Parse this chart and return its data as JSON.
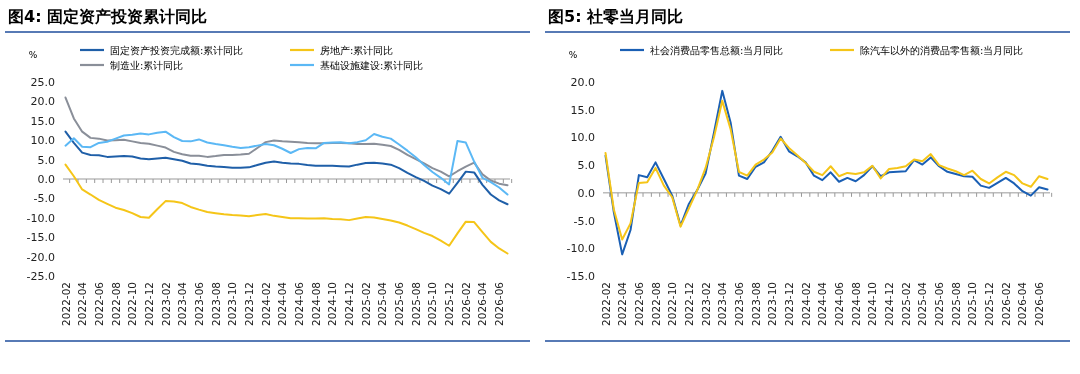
{
  "chart_data": [
    {
      "type": "line",
      "title": "图4: 固定资产投资累计同比",
      "ylabel": "%",
      "legend": "top",
      "categories": [
        "2022-02",
        null,
        "2022-04",
        null,
        "2022-06",
        null,
        "2022-08",
        null,
        "2022-10",
        null,
        "2022-12",
        null,
        "2023-02",
        null,
        "2023-04",
        null,
        "2023-06",
        null,
        "2023-08",
        null,
        "2023-10",
        null,
        "2023-12",
        null,
        "2024-02",
        null,
        "2024-04",
        null,
        "2024-06",
        null,
        "2024-08",
        null,
        "2024-10",
        null,
        "2024-12",
        null,
        "2025-02",
        null,
        "2025-04",
        null,
        "2025-06",
        null,
        "2025-08",
        null,
        "2025-10",
        null,
        "2025-12",
        null,
        "2026-02",
        null,
        "2026-04",
        null,
        "2026-06",
        null
      ],
      "ylim": [
        -25,
        25
      ],
      "yticks": [
        {
          "value": 25,
          "label": "25.0"
        },
        {
          "value": 20,
          "label": "20.0"
        },
        {
          "value": 15,
          "label": "15.0"
        },
        {
          "value": 10,
          "label": "10.0"
        },
        {
          "value": 5,
          "label": "5.0"
        },
        {
          "value": 0,
          "label": "0.0"
        },
        {
          "value": -5,
          "label": "-5.0"
        },
        {
          "value": -10,
          "label": "-10.0"
        },
        {
          "value": -15,
          "label": "-15.0"
        },
        {
          "value": -20,
          "label": "-20.0"
        },
        {
          "value": -25,
          "label": "-25.0"
        }
      ],
      "series": [
        {
          "name": "固定资产投资完成额:累计同比",
          "color": "#1f5fa8",
          "values": [
            12.2,
            9.3,
            6.8,
            6.2,
            6.1,
            5.7,
            5.8,
            5.9,
            5.8,
            5.3,
            5.1,
            5.3,
            5.5,
            5.1,
            4.7,
            4.0,
            3.8,
            3.4,
            3.2,
            3.1,
            2.9,
            2.9,
            3.0,
            3.6,
            4.2,
            4.5,
            4.2,
            4.0,
            3.9,
            3.6,
            3.4,
            3.4,
            3.4,
            3.3,
            3.2,
            3.7,
            4.1,
            4.2,
            4.0,
            3.7,
            2.8,
            1.6,
            0.5,
            -0.5,
            -1.7,
            -2.6,
            -3.8,
            -1.0,
            1.9,
            1.7,
            -1.5,
            -4.0,
            -5.5,
            -6.5
          ]
        },
        {
          "name": "房地产:累计同比",
          "color": "#f5c518",
          "values": [
            3.7,
            0.7,
            -2.7,
            -4.0,
            -5.4,
            -6.4,
            -7.4,
            -8.0,
            -8.8,
            -9.8,
            -10.0,
            -7.8,
            -5.7,
            -5.8,
            -6.2,
            -7.2,
            -7.9,
            -8.5,
            -8.8,
            -9.1,
            -9.3,
            -9.4,
            -9.6,
            -9.3,
            -9.0,
            -9.5,
            -9.8,
            -10.1,
            -10.1,
            -10.2,
            -10.2,
            -10.1,
            -10.3,
            -10.4,
            -10.6,
            -10.2,
            -9.8,
            -9.9,
            -10.3,
            -10.7,
            -11.2,
            -12.0,
            -12.9,
            -13.9,
            -14.7,
            -15.9,
            -17.2,
            -14.0,
            -11.0,
            -11.1,
            -13.7,
            -16.2,
            -17.9,
            -19.2
          ]
        },
        {
          "name": "制造业:累计同比",
          "color": "#8a8f99",
          "values": [
            21.0,
            15.6,
            12.2,
            10.6,
            10.4,
            9.9,
            10.0,
            10.1,
            9.7,
            9.3,
            9.1,
            8.6,
            8.1,
            7.0,
            6.4,
            6.0,
            6.0,
            5.7,
            5.9,
            6.2,
            6.2,
            6.3,
            6.5,
            8.0,
            9.5,
            9.9,
            9.7,
            9.6,
            9.5,
            9.3,
            9.2,
            9.2,
            9.3,
            9.3,
            9.2,
            9.0,
            9.0,
            9.1,
            8.8,
            8.5,
            7.5,
            6.2,
            5.1,
            4.0,
            2.8,
            1.9,
            0.7,
            2.0,
            3.2,
            4.2,
            1.2,
            -0.4,
            -1.2,
            -1.6
          ]
        },
        {
          "name": "基础设施建设:累计同比",
          "color": "#5bb8f5",
          "values": [
            8.6,
            10.5,
            8.3,
            8.2,
            9.3,
            9.6,
            10.4,
            11.2,
            11.4,
            11.7,
            11.5,
            11.9,
            12.2,
            10.8,
            9.8,
            9.7,
            10.2,
            9.4,
            9.0,
            8.7,
            8.3,
            8.0,
            8.2,
            8.6,
            9.0,
            8.7,
            7.8,
            6.7,
            7.7,
            8.0,
            7.9,
            9.3,
            9.4,
            9.5,
            9.2,
            9.5,
            10.0,
            11.6,
            10.9,
            10.4,
            8.9,
            7.3,
            5.6,
            3.6,
            1.8,
            0.3,
            -1.4,
            9.8,
            9.4,
            4.5,
            0.3,
            -0.8,
            -2.2,
            -4.0
          ]
        }
      ]
    },
    {
      "type": "line",
      "title": "图5: 社零当月同比",
      "ylabel": "%",
      "legend": "top",
      "categories": [
        "2022-02",
        null,
        "2022-04",
        null,
        "2022-06",
        null,
        "2022-08",
        null,
        "2022-10",
        null,
        "2022-12",
        null,
        "2023-02",
        null,
        "2023-04",
        null,
        "2023-06",
        null,
        "2023-08",
        null,
        "2023-10",
        null,
        "2023-12",
        null,
        "2024-02",
        null,
        "2024-04",
        null,
        "2024-06",
        null,
        "2024-08",
        null,
        "2024-10",
        null,
        "2024-12",
        null,
        "2025-02",
        null,
        "2025-04",
        null,
        "2025-06",
        null,
        "2025-08",
        null,
        "2025-10",
        null,
        "2025-12",
        null,
        "2026-02",
        null,
        "2026-04",
        null,
        "2026-06",
        null
      ],
      "ylim": [
        -15,
        20
      ],
      "yticks": [
        {
          "value": 20,
          "label": "20.0"
        },
        {
          "value": 15,
          "label": "15.0"
        },
        {
          "value": 10,
          "label": "10.0"
        },
        {
          "value": 5,
          "label": "5.0"
        },
        {
          "value": 0,
          "label": "0.0"
        },
        {
          "value": -5,
          "label": "-5.0"
        },
        {
          "value": -10,
          "label": "-10.0"
        },
        {
          "value": -15,
          "label": "-15.0"
        }
      ],
      "series": [
        {
          "name": "社会消费品零售总额:当月同比",
          "color": "#1a5fb4",
          "values": [
            6.7,
            -3.5,
            -11.1,
            -6.7,
            3.2,
            2.8,
            5.5,
            2.5,
            -0.5,
            -5.9,
            -2.0,
            0.5,
            3.5,
            10.8,
            18.4,
            12.7,
            3.1,
            2.5,
            4.7,
            5.5,
            7.6,
            10.1,
            7.5,
            6.6,
            5.5,
            3.1,
            2.3,
            3.7,
            2.0,
            2.7,
            2.1,
            3.2,
            4.8,
            3.0,
            3.7,
            3.8,
            3.9,
            5.9,
            5.1,
            6.4,
            4.8,
            3.8,
            3.4,
            3.0,
            2.9,
            1.3,
            0.9,
            1.8,
            2.7,
            1.7,
            0.3,
            -0.5,
            1.0,
            0.6
          ]
        },
        {
          "name": "除汽车以外的消费品零售额:当月同比",
          "color": "#f5c518",
          "values": [
            7.2,
            -3.0,
            -8.4,
            -5.5,
            1.8,
            1.9,
            4.5,
            1.3,
            -0.8,
            -6.1,
            -2.8,
            0.5,
            4.5,
            10.0,
            16.6,
            11.5,
            3.8,
            3.1,
            5.1,
            6.0,
            7.3,
            9.8,
            8.1,
            6.8,
            5.4,
            3.8,
            3.2,
            4.8,
            3.0,
            3.6,
            3.4,
            3.7,
            4.9,
            2.6,
            4.3,
            4.5,
            4.8,
            6.0,
            5.7,
            7.0,
            5.0,
            4.4,
            3.9,
            3.2,
            4.0,
            2.5,
            1.7,
            2.8,
            3.8,
            3.2,
            1.7,
            1.1,
            3.0,
            2.5
          ]
        }
      ]
    }
  ]
}
